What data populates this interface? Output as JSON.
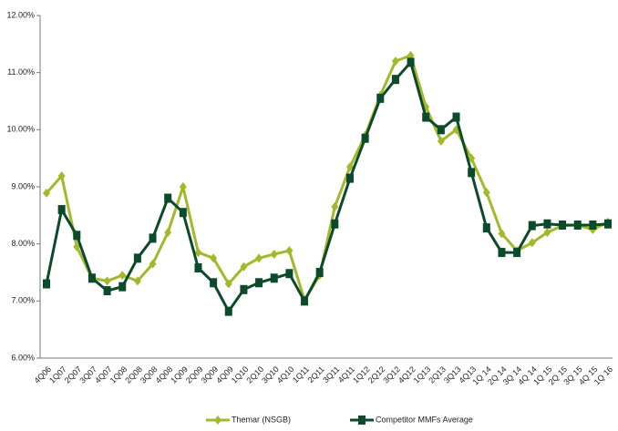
{
  "chart_data": {
    "type": "line",
    "categories": [
      "4Q06",
      "1Q07",
      "2Q07",
      "3Q07",
      "4Q07",
      "1Q08",
      "2Q08",
      "3Q08",
      "4Q08",
      "1Q09",
      "2Q09",
      "3Q09",
      "4Q09",
      "1Q10",
      "2Q10",
      "3Q10",
      "4Q10",
      "1Q11",
      "2Q11",
      "3Q11",
      "4Q11",
      "1Q12",
      "2Q12",
      "3Q12",
      "4Q12",
      "1Q13",
      "2Q13",
      "3Q13",
      "4Q13",
      "1Q 14",
      "2Q 14",
      "3Q 14",
      "4Q 14",
      "1Q 15",
      "2Q 15",
      "3Q 15",
      "4Q 15",
      "1Q 16"
    ],
    "series": [
      {
        "name": "Themar (NSGB)",
        "color": "#a3b82a",
        "marker": "diamond",
        "values": [
          8.89,
          9.19,
          7.95,
          7.4,
          7.35,
          7.45,
          7.35,
          7.65,
          8.2,
          9.0,
          7.85,
          7.75,
          7.3,
          7.6,
          7.75,
          7.82,
          7.88,
          7.02,
          7.45,
          8.65,
          9.35,
          9.9,
          10.6,
          11.2,
          11.3,
          10.4,
          9.8,
          10.0,
          9.5,
          8.9,
          8.18,
          7.88,
          8.02,
          8.2,
          8.32,
          8.33,
          8.25,
          8.38
        ]
      },
      {
        "name": "Competitor MMFs Average",
        "color": "#0b4a2b",
        "marker": "square",
        "values": [
          7.3,
          8.6,
          8.15,
          7.4,
          7.18,
          7.25,
          7.75,
          8.1,
          8.8,
          8.55,
          7.58,
          7.32,
          6.82,
          7.2,
          7.32,
          7.4,
          7.48,
          7.0,
          7.5,
          8.35,
          9.15,
          9.85,
          10.55,
          10.88,
          11.18,
          10.22,
          10.0,
          10.22,
          9.25,
          8.28,
          7.85,
          7.85,
          8.32,
          8.35,
          8.33,
          8.33,
          8.33,
          8.35
        ]
      }
    ],
    "ylim": [
      6,
      12
    ],
    "yticks": [
      {
        "value": 6,
        "label": "6.00%"
      },
      {
        "value": 7,
        "label": "7.00%"
      },
      {
        "value": 8,
        "label": "8.00%"
      },
      {
        "value": 9,
        "label": "9.00%"
      },
      {
        "value": 10,
        "label": "10.00%"
      },
      {
        "value": 11,
        "label": "11.00%"
      },
      {
        "value": 12,
        "label": "12.00%"
      }
    ],
    "grid": false,
    "legend": "bottom"
  }
}
